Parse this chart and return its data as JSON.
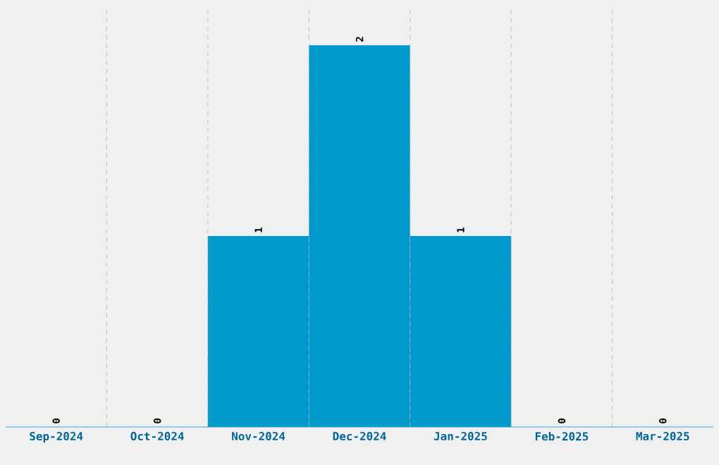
{
  "chart_data": {
    "type": "bar",
    "categories": [
      "Sep-2024",
      "Oct-2024",
      "Nov-2024",
      "Dec-2024",
      "Jan-2025",
      "Feb-2025",
      "Mar-2025"
    ],
    "values": [
      0,
      0,
      1,
      2,
      1,
      0,
      0
    ],
    "color": "#0099cc",
    "ylim": [
      0,
      2.2
    ],
    "tick_labels": "x",
    "grid": "x",
    "data_labels": true
  }
}
